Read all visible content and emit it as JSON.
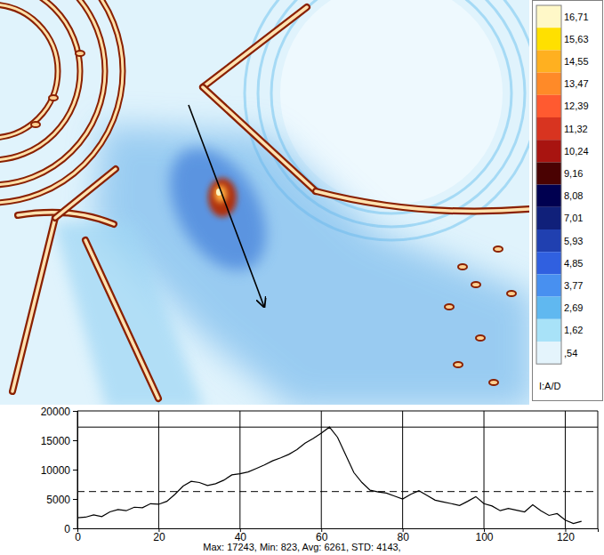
{
  "chart_data": [
    {
      "type": "image",
      "colorbar_ticks": [
        {
          "value": 16.71,
          "label": "16,71"
        },
        {
          "value": 15.63,
          "label": "15,63"
        },
        {
          "value": 14.55,
          "label": "14,55"
        },
        {
          "value": 13.47,
          "label": "13,47"
        },
        {
          "value": 12.39,
          "label": "12,39"
        },
        {
          "value": 11.32,
          "label": "11,32"
        },
        {
          "value": 10.24,
          "label": "10,24"
        },
        {
          "value": 9.16,
          "label": "9,16"
        },
        {
          "value": 8.08,
          "label": "8,08"
        },
        {
          "value": 7.01,
          "label": "7,01"
        },
        {
          "value": 5.93,
          "label": "5,93"
        },
        {
          "value": 4.85,
          "label": "4,85"
        },
        {
          "value": 3.77,
          "label": "3,77"
        },
        {
          "value": 2.69,
          "label": "2,69"
        },
        {
          "value": 1.62,
          "label": "1,62"
        },
        {
          "value": 0.54,
          "label": ",54"
        }
      ],
      "colorbar_colors": [
        "#fff8c8",
        "#ffe000",
        "#ffb020",
        "#ff8a28",
        "#ff5a30",
        "#d83420",
        "#a81410",
        "#4a0202",
        "#000050",
        "#10207a",
        "#2040b0",
        "#3060e0",
        "#4890f0",
        "#60b8f0",
        "#a8e2f8",
        "#e4f4fc"
      ],
      "colorbar_title": "I:A/D"
    },
    {
      "type": "line",
      "x": [
        0,
        2,
        4,
        6,
        8,
        10,
        12,
        14,
        16,
        18,
        20,
        22,
        24,
        26,
        28,
        30,
        32,
        34,
        36,
        38,
        40,
        42,
        44,
        46,
        48,
        50,
        52,
        54,
        56,
        58,
        60,
        62,
        64,
        66,
        68,
        70,
        72,
        74,
        76,
        78,
        80,
        82,
        84,
        86,
        88,
        90,
        92,
        94,
        96,
        98,
        100,
        102,
        104,
        106,
        108,
        110,
        112,
        114,
        116,
        118,
        120,
        122,
        124
      ],
      "series": [
        {
          "color": "#000000",
          "values": [
            1800,
            1900,
            2300,
            2000,
            2800,
            3200,
            3000,
            3600,
            3500,
            4200,
            4100,
            4600,
            5800,
            7200,
            8000,
            7800,
            7300,
            7600,
            8200,
            9100,
            9300,
            9600,
            10200,
            10800,
            11500,
            12000,
            12600,
            13400,
            14500,
            15300,
            16200,
            17243,
            15500,
            12500,
            9500,
            7800,
            6500,
            6200,
            6000,
            5500,
            5000,
            5800,
            6400,
            5600,
            4800,
            4500,
            4200,
            3900,
            4600,
            5400,
            4200,
            3800,
            3000,
            3400,
            3100,
            2800,
            4000,
            3000,
            2200,
            2500,
            1400,
            823,
            1200
          ]
        }
      ],
      "xlim": [
        0,
        128
      ],
      "ylim": [
        0,
        20000
      ],
      "xticks": [
        0,
        20,
        40,
        60,
        80,
        100,
        120
      ],
      "yticks": [
        0,
        5000,
        10000,
        15000,
        20000
      ],
      "grid": true,
      "reference_lines": [
        {
          "value": 17243,
          "line_style": "solid"
        },
        {
          "value": 6261,
          "line_style": "dashed"
        }
      ],
      "annotation": "Max: 17243, Min: 823, Avg: 6261, STD: 4143,"
    }
  ]
}
